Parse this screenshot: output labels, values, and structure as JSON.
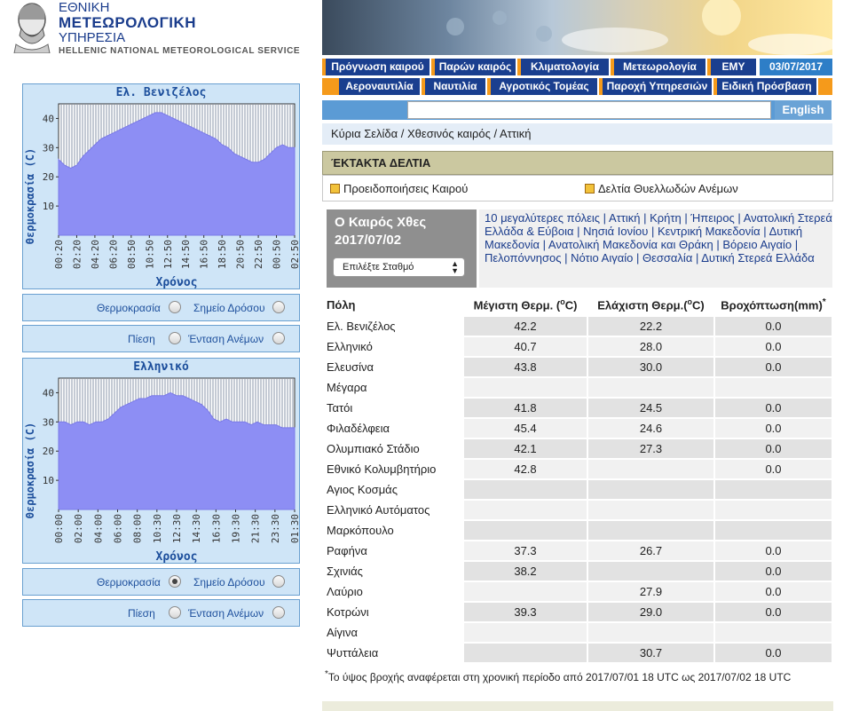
{
  "logo": {
    "line1": "ΕΘΝΙΚΗ",
    "line2": "ΜΕΤΕΩΡΟΛΟΓΙΚΗ",
    "line3": "ΥΠΗΡΕΣΙΑ",
    "line4": "HELLENIC NATIONAL METEOROLOGICAL SERVICE"
  },
  "nav": {
    "row1": [
      "Πρόγνωση καιρού",
      "Παρών καιρός",
      "Κλιματολογία",
      "Μετεωρολογία",
      "ΕΜΥ"
    ],
    "date": "03/07/2017",
    "row2": [
      "Αεροναυτιλία",
      "Ναυτιλία",
      "Αγροτικός Τομέας",
      "Παροχή Υπηρεσιών",
      "Ειδική Πρόσβαση"
    ],
    "english": "English"
  },
  "breadcrumb": "Κύρια Σελίδα / Χθεσινός καιρός / Αττική",
  "alerts": {
    "title": "ΈΚΤΑΚΤΑ ΔΕΛΤΙΑ",
    "link1": "Προειδοποιήσεις Καιρού",
    "link2": "Δελτία Θυελλωδών Ανέμων"
  },
  "weather": {
    "title_line1": "Ο Καιρός Χθες",
    "title_line2": "2017/07/02",
    "select_value": "Επιλέξτε Σταθμό",
    "cities_links": "10 μεγαλύτερες πόλεις | Αττική | Κρήτη | Ήπειρος | Ανατολική Στερεά Ελλάδα & Εύβοια | Νησιά Ιονίου | Κεντρική Μακεδονία | Δυτική Μακεδονία | Ανατολική Μακεδονία και Θράκη | Βόρειο Αιγαίο | Πελοπόννησος | Νότιο Αιγαίο | Θεσσαλία | Δυτική Στερεά Ελλάδα"
  },
  "table": {
    "headers": [
      "Πόλη",
      "Μέγιστη Θερμ. (",
      "C)",
      "Ελάχιστη Θερμ.(",
      "C)",
      "Βροχόπτωση(mm)"
    ],
    "header_sup_o": "o",
    "header_star": "*",
    "rows": [
      [
        "Ελ. Βενιζέλος",
        "42.2",
        "22.2",
        "0.0"
      ],
      [
        "Ελληνικό",
        "40.7",
        "28.0",
        "0.0"
      ],
      [
        "Ελευσίνα",
        "43.8",
        "30.0",
        "0.0"
      ],
      [
        "Μέγαρα",
        "",
        "",
        ""
      ],
      [
        "Τατόι",
        "41.8",
        "24.5",
        "0.0"
      ],
      [
        "Φιλαδέλφεια",
        "45.4",
        "24.6",
        "0.0"
      ],
      [
        "Ολυμπιακό Στάδιο",
        "42.1",
        "27.3",
        "0.0"
      ],
      [
        "Εθνικό Κολυμβητήριο",
        "42.8",
        "",
        "0.0"
      ],
      [
        "Αγιος Κοσμάς",
        "",
        "",
        ""
      ],
      [
        "Ελληνικό Αυτόματος",
        "",
        "",
        ""
      ],
      [
        "Μαρκόπουλο",
        "",
        "",
        ""
      ],
      [
        "Ραφήνα",
        "37.3",
        "26.7",
        "0.0"
      ],
      [
        "Σχινιάς",
        "38.2",
        "",
        "0.0"
      ],
      [
        "Λαύριο",
        "",
        "27.9",
        "0.0"
      ],
      [
        "Κοτρώνι",
        "39.3",
        "29.0",
        "0.0"
      ],
      [
        "Αίγινα",
        "",
        "",
        ""
      ],
      [
        "Ψυττάλεια",
        "",
        "30.7",
        "0.0"
      ]
    ]
  },
  "footnote_star": "*",
  "footnote": "Το ύψος βροχής αναφέρεται στη χρονική περίοδο από 2017/07/01 18 UTC ως 2017/07/02 18 UTC",
  "charts": {
    "ylabel": "Θερμοκρασία (C)",
    "xlabel": "Χρόνος",
    "opt_temp": "Θερμοκρασία",
    "opt_dew": "Σημείο Δρόσου",
    "opt_pressure": "Πίεση",
    "opt_wind": "Ένταση Ανέμων"
  },
  "chart_data": [
    {
      "type": "area",
      "title": "Ελ. Βενιζέλος",
      "xlabel": "Χρόνος",
      "ylabel": "Θερμοκρασία (C)",
      "ylim": [
        0,
        45
      ],
      "yticks": [
        10,
        20,
        30,
        40
      ],
      "xticks": [
        "00:20",
        "02:20",
        "04:20",
        "06:20",
        "08:50",
        "10:50",
        "12:50",
        "14:50",
        "16:50",
        "18:50",
        "20:50",
        "22:50",
        "00:50",
        "02:50"
      ],
      "values": [
        26,
        24,
        23,
        24,
        27,
        29,
        31,
        33,
        34,
        35,
        36,
        37,
        38,
        39,
        40,
        41,
        42,
        42,
        41,
        40,
        39,
        38,
        37,
        36,
        35,
        34,
        33,
        31,
        30,
        28,
        27,
        26,
        25,
        25,
        26,
        28,
        30,
        31,
        30,
        30
      ],
      "grid": true
    },
    {
      "type": "area",
      "title": "Ελληνικό",
      "xlabel": "Χρόνος",
      "ylabel": "Θερμοκρασία (C)",
      "ylim": [
        0,
        45
      ],
      "yticks": [
        10,
        20,
        30,
        40
      ],
      "xticks": [
        "00:00",
        "02:00",
        "04:00",
        "06:00",
        "08:00",
        "10:30",
        "12:30",
        "14:30",
        "16:30",
        "19:30",
        "21:30",
        "23:30",
        "01:30"
      ],
      "values": [
        30,
        30,
        29,
        30,
        30,
        29,
        30,
        30,
        31,
        33,
        35,
        36,
        37,
        38,
        38,
        39,
        39,
        39,
        40,
        39,
        39,
        38,
        37,
        36,
        34,
        31,
        30,
        31,
        30,
        30,
        30,
        29,
        30,
        29,
        29,
        29,
        28,
        28,
        28
      ],
      "grid": true
    }
  ]
}
